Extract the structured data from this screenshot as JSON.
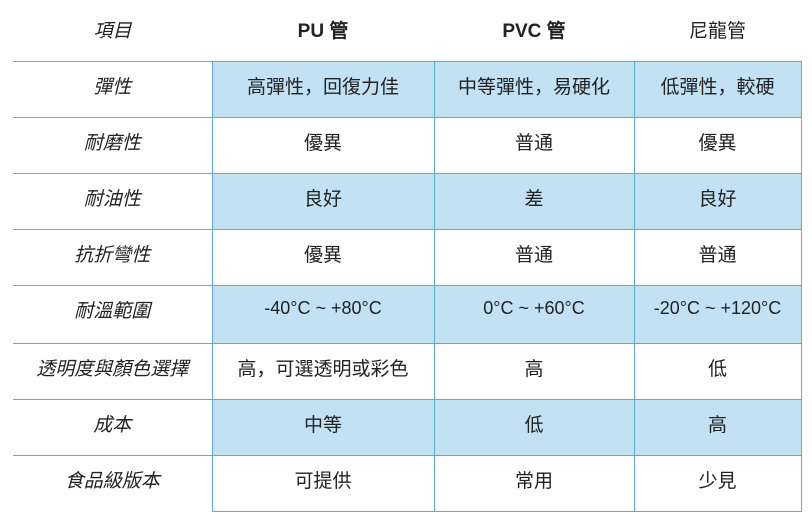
{
  "headers": [
    "項目",
    "PU 管",
    "PVC 管",
    "尼龍管"
  ],
  "rows": [
    {
      "label": "彈性",
      "values": [
        "高彈性，回復力佳",
        "中等彈性，易硬化",
        "低彈性，較硬"
      ]
    },
    {
      "label": "耐磨性",
      "values": [
        "優異",
        "普通",
        "優異"
      ]
    },
    {
      "label": "耐油性",
      "values": [
        "良好",
        "差",
        "良好"
      ]
    },
    {
      "label": "抗折彎性",
      "values": [
        "優異",
        "普通",
        "普通"
      ]
    },
    {
      "label": "耐溫範圍",
      "values": [
        "-40°C ~ +80°C",
        "0°C ~ +60°C",
        "-20°C ~ +120°C"
      ]
    },
    {
      "label": "透明度與顏色選擇",
      "values": [
        "高，可選透明或彩色",
        "高",
        "低"
      ]
    },
    {
      "label": "成本",
      "values": [
        "中等",
        "低",
        "高"
      ]
    },
    {
      "label": "食品級版本",
      "values": [
        "可提供",
        "常用",
        "少見"
      ]
    }
  ],
  "colors": {
    "shade": "#c2e2f4",
    "border": "#5aaed0"
  }
}
